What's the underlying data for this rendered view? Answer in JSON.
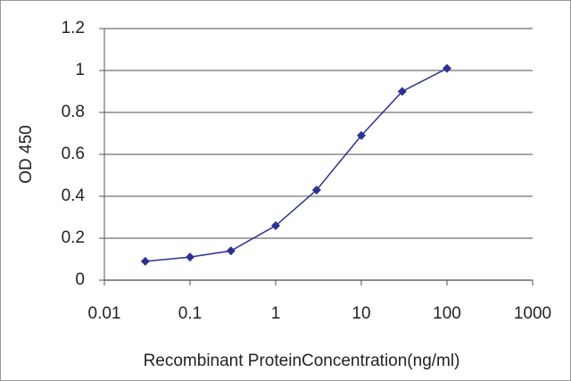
{
  "chart_data": {
    "type": "line",
    "x_label": "Recombinant ProteinConcentration(ng/ml)",
    "y_label": "OD 450",
    "x": [
      0.03,
      0.1,
      0.3,
      1,
      3,
      10,
      30,
      100
    ],
    "series": [
      {
        "color": "#2e3192",
        "values": [
          0.09,
          0.11,
          0.14,
          0.26,
          0.43,
          0.69,
          0.9,
          1.01
        ]
      }
    ],
    "xscale": "log",
    "xlim": [
      0.01,
      1000
    ],
    "xticks": [
      0.01,
      0.1,
      1,
      10,
      100,
      1000
    ],
    "ylim": [
      0,
      1.2
    ],
    "yticks": [
      0,
      0.2,
      0.4,
      0.6,
      0.8,
      1,
      1.2
    ],
    "grid": true
  }
}
